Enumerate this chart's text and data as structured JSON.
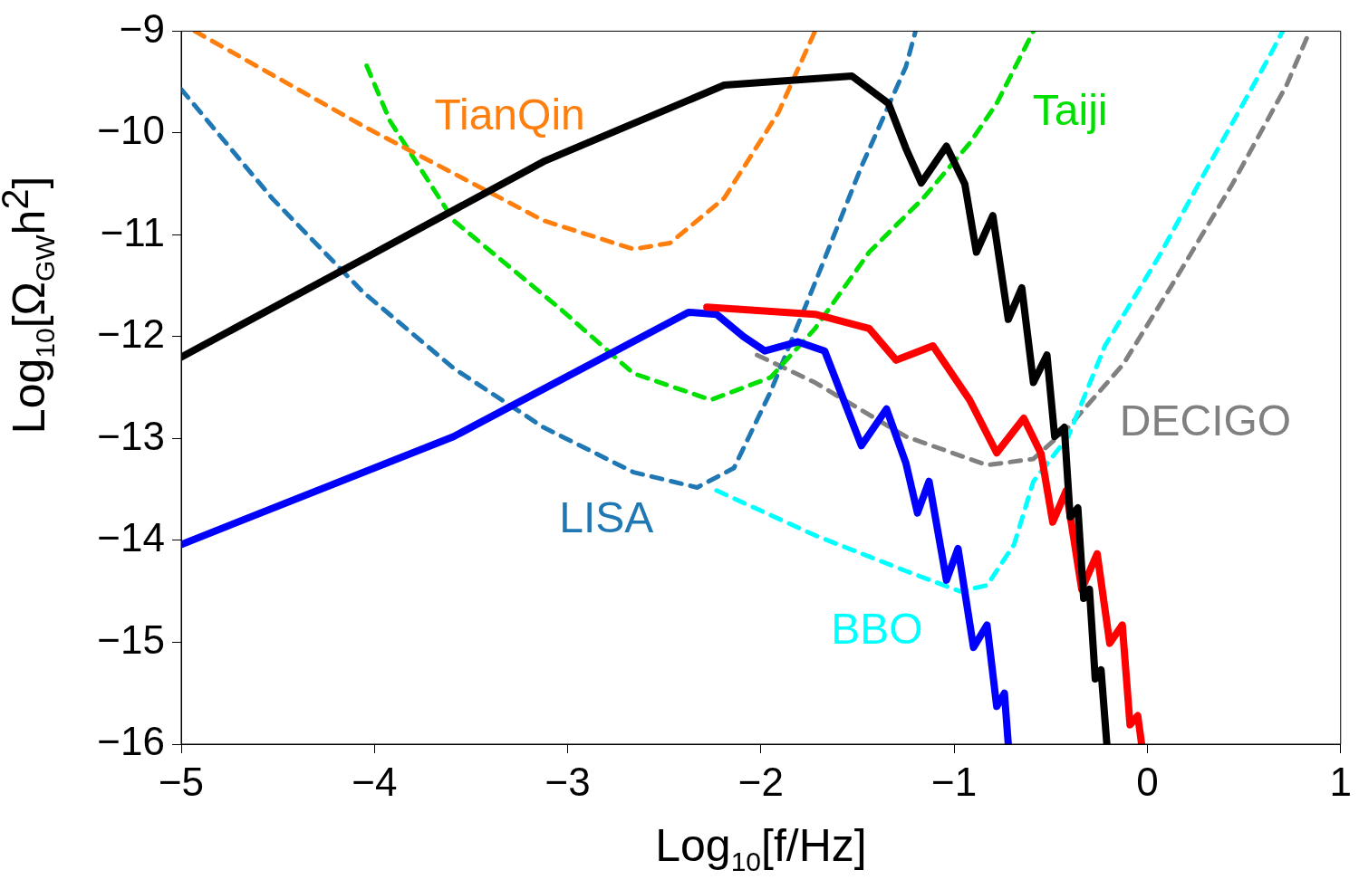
{
  "chart_data": {
    "type": "line",
    "xlabel": "Log$_{10}$[f/Hz]",
    "ylabel": "Log$_{10}$[Ω$_{GW}$h$^{2}$]",
    "xlim": [
      -5,
      1
    ],
    "xticks": [
      -5,
      -4,
      -3,
      -2,
      -1,
      0,
      1
    ],
    "ylim": [
      -16,
      -9
    ],
    "yticks": [
      -16,
      -15,
      -14,
      -13,
      -12,
      -11,
      -10,
      -9
    ],
    "grid": false,
    "legend": false,
    "marker": "none",
    "series": [
      {
        "name": "TianQin",
        "color": "#ff7f0e",
        "line_style": "dashed",
        "x": [
          -4.93,
          -4.06,
          -3.125,
          -2.66,
          -2.47,
          -2.19,
          -1.91,
          -1.72
        ],
        "values": [
          -9.0,
          -9.93,
          -10.86,
          -11.14,
          -11.08,
          -10.64,
          -9.8,
          -9.0
        ]
      },
      {
        "name": "Taiji",
        "color": "#00e000",
        "line_style": "dashed",
        "x": [
          -4.04,
          -3.92,
          -3.59,
          -3.03,
          -2.66,
          -2.26,
          -1.95,
          -1.72,
          -1.44,
          -1.16,
          -0.92,
          -0.78,
          -0.59
        ],
        "values": [
          -9.34,
          -9.88,
          -10.86,
          -11.74,
          -12.36,
          -12.62,
          -12.4,
          -11.92,
          -11.17,
          -10.64,
          -10.1,
          -9.71,
          -9.0
        ]
      },
      {
        "name": "LISA",
        "color": "#1f77b4",
        "line_style": "dashed",
        "x": [
          -5,
          -4.53,
          -4.06,
          -3.59,
          -3.125,
          -2.66,
          -2.33,
          -2.14,
          -1.95,
          -1.72,
          -1.48,
          -1.25,
          -1.2
        ],
        "values": [
          -9.57,
          -10.64,
          -11.56,
          -12.31,
          -12.89,
          -13.33,
          -13.48,
          -13.29,
          -12.54,
          -11.47,
          -10.33,
          -9.35,
          -9.0
        ]
      },
      {
        "name": "BBO",
        "color": "#00ffff",
        "line_style": "dashed",
        "x": [
          -2.23,
          -1.72,
          -1.25,
          -0.97,
          -0.83,
          -0.69,
          -0.59,
          -0.41,
          -0.22,
          0.06,
          0.34,
          0.625,
          0.7
        ],
        "values": [
          -13.51,
          -13.95,
          -14.3,
          -14.5,
          -14.44,
          -14.04,
          -13.42,
          -12.98,
          -12.09,
          -11.21,
          -10.24,
          -9.27,
          -9.0
        ]
      },
      {
        "name": "DECIGO",
        "color": "#808080",
        "line_style": "dashed",
        "x": [
          -2.02,
          -1.72,
          -1.25,
          -0.83,
          -0.59,
          -0.41,
          -0.125,
          0.16,
          0.44,
          0.72,
          0.84
        ],
        "values": [
          -12.18,
          -12.45,
          -12.98,
          -13.26,
          -13.2,
          -12.89,
          -12.27,
          -11.39,
          -10.5,
          -9.53,
          -9.0
        ]
      },
      {
        "color": "#000000",
        "line_style": "solid",
        "x": [
          -5,
          -4.06,
          -3.125,
          -2.19,
          -1.53,
          -1.34,
          -1.25,
          -1.17,
          -1.04,
          -0.945,
          -0.885,
          -0.8,
          -0.72,
          -0.65,
          -0.59,
          -0.52,
          -0.48,
          -0.43,
          -0.4,
          -0.36,
          -0.33,
          -0.3,
          -0.27,
          -0.24,
          -0.21
        ],
        "values": [
          -12.2,
          -11.24,
          -10.28,
          -9.53,
          -9.44,
          -9.71,
          -10.15,
          -10.49,
          -10.13,
          -10.5,
          -11.17,
          -10.81,
          -11.83,
          -11.52,
          -12.45,
          -12.18,
          -12.98,
          -12.89,
          -13.77,
          -13.68,
          -14.57,
          -14.48,
          -15.36,
          -15.27,
          -16.0
        ]
      },
      {
        "color": "#ff0000",
        "line_style": "solid",
        "x": [
          -2.28,
          -1.72,
          -1.44,
          -1.3,
          -1.11,
          -0.92,
          -0.78,
          -0.64,
          -0.55,
          -0.49,
          -0.42,
          -0.34,
          -0.26,
          -0.195,
          -0.13,
          -0.09,
          -0.05,
          -0.03
        ],
        "values": [
          -11.71,
          -11.78,
          -11.92,
          -12.23,
          -12.09,
          -12.62,
          -13.14,
          -12.8,
          -13.15,
          -13.82,
          -13.51,
          -14.48,
          -14.13,
          -15.01,
          -14.83,
          -15.81,
          -15.72,
          -16.0
        ]
      },
      {
        "color": "#0000ff",
        "line_style": "solid",
        "x": [
          -5,
          -3.59,
          -2.375,
          -2.23,
          -2.09,
          -1.98,
          -1.81,
          -1.67,
          -1.48,
          -1.35,
          -1.25,
          -1.19,
          -1.13,
          -1.04,
          -0.98,
          -0.9,
          -0.83,
          -0.78,
          -0.74,
          -0.72
        ],
        "values": [
          -14.04,
          -12.98,
          -11.76,
          -11.78,
          -12.0,
          -12.14,
          -12.05,
          -12.14,
          -13.07,
          -12.71,
          -13.24,
          -13.73,
          -13.42,
          -14.39,
          -14.08,
          -15.05,
          -14.83,
          -15.63,
          -15.5,
          -16.0
        ]
      }
    ]
  }
}
